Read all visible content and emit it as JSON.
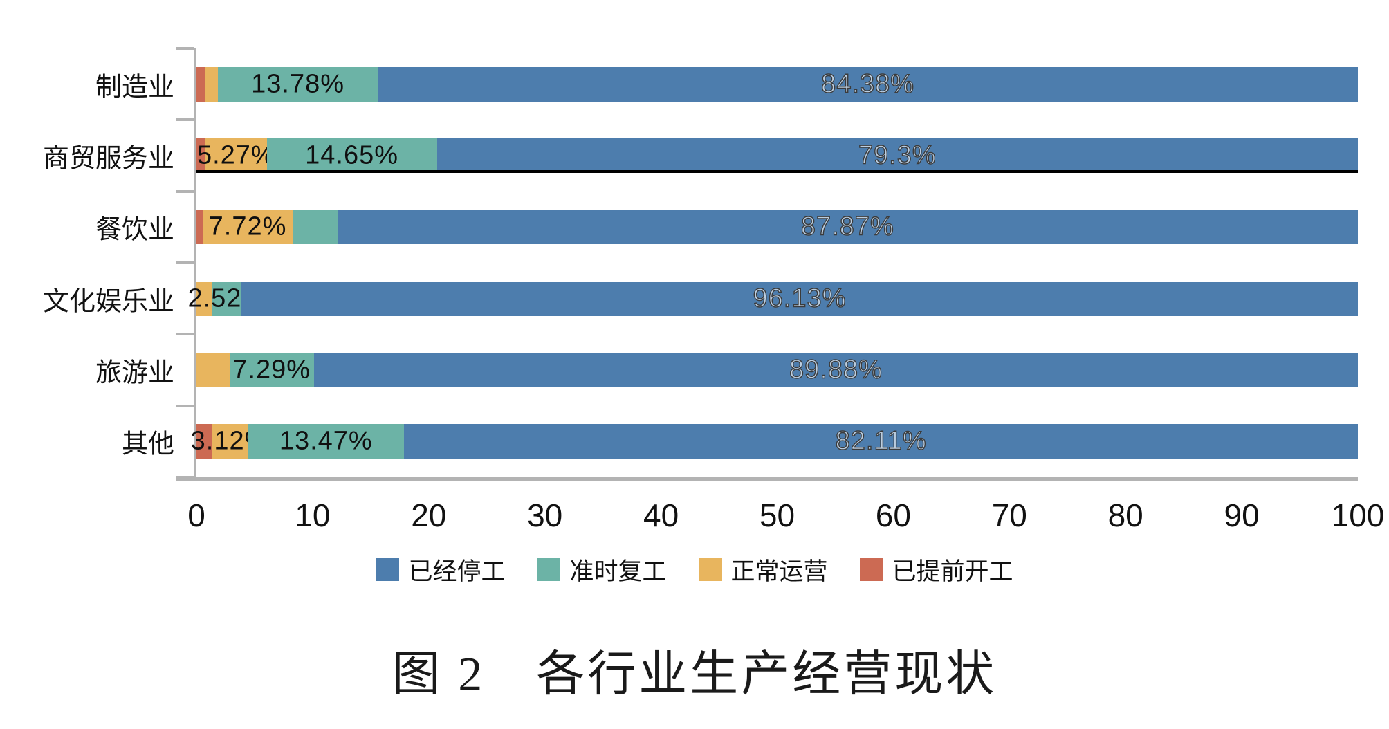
{
  "caption": "图 2　各行业生产经营现状",
  "colors": {
    "axis": "#b3b3b3",
    "bar_blue": "#4d7dad",
    "bar_teal": "#6cb3a6",
    "bar_yellow": "#e8b55e",
    "bar_red": "#cc6a53",
    "label_text": "#101010",
    "outline_label_stroke": "#3b3b3b",
    "underline": "#000000"
  },
  "chart_data": {
    "type": "bar",
    "orientation": "horizontal",
    "stacked": true,
    "title": "图 2　各行业生产经营现状",
    "grid": false,
    "categories": [
      "制造业",
      "商贸服务业",
      "餐饮业",
      "文化娱乐业",
      "旅游业",
      "其他"
    ],
    "series": [
      {
        "name": "已提前开工",
        "color": "#cc6a53",
        "label_style": "solid",
        "values": [
          0.77,
          0.78,
          0.55,
          0,
          0,
          1.3
        ],
        "labels": [
          "",
          "",
          "",
          "",
          "",
          ""
        ]
      },
      {
        "name": "正常运营",
        "color": "#e8b55e",
        "label_style": "solid",
        "values": [
          1.07,
          5.27,
          7.72,
          1.35,
          2.83,
          3.12
        ],
        "labels": [
          "",
          "5.27%",
          "7.72%",
          "",
          "",
          "3.12%"
        ]
      },
      {
        "name": "准时复工",
        "color": "#6cb3a6",
        "label_style": "solid",
        "values": [
          13.78,
          14.65,
          3.86,
          2.52,
          7.29,
          13.47
        ],
        "labels": [
          "13.78%",
          "14.65%",
          "",
          "2.52%",
          "7.29%",
          "13.47%"
        ]
      },
      {
        "name": "已经停工",
        "color": "#4d7dad",
        "label_style": "outline",
        "values": [
          84.38,
          79.3,
          87.87,
          96.13,
          89.88,
          82.11
        ],
        "labels": [
          "84.38%",
          "79.3%",
          "87.87%",
          "96.13%",
          "89.88%",
          "82.11%"
        ]
      }
    ],
    "x_axis": {
      "min": 0,
      "max": 100,
      "ticks": [
        "0",
        "10",
        "20",
        "30",
        "40",
        "50",
        "60",
        "70",
        "80",
        "90",
        "100"
      ]
    },
    "legend": {
      "position": "bottom",
      "items": [
        {
          "label": "已经停工",
          "color": "#4d7dad"
        },
        {
          "label": "准时复工",
          "color": "#6cb3a6"
        },
        {
          "label": "正常运营",
          "color": "#e8b55e"
        },
        {
          "label": "已提前开工",
          "color": "#cc6a53"
        }
      ]
    },
    "annotations": {
      "underlined_category": "商贸服务业"
    }
  }
}
